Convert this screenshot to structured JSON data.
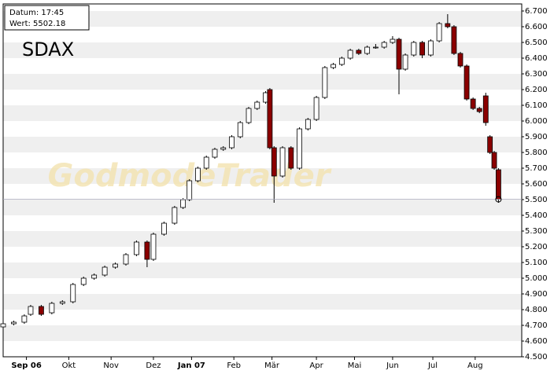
{
  "chart_data": {
    "type": "candlestick",
    "title": "SDAX",
    "info": {
      "datum": "Datum: 17:45",
      "wert": "Wert: 5502.18"
    },
    "watermark": "GodmodeTrader",
    "up_color": "#ffffff",
    "down_color": "#8b0000",
    "grid": true,
    "xlim": [
      0,
      245
    ],
    "ylim": [
      4500,
      6745
    ],
    "xticks": [
      {
        "value": 11,
        "label": "Sep 06"
      },
      {
        "value": 31,
        "label": "Okt"
      },
      {
        "value": 51,
        "label": "Nov"
      },
      {
        "value": 71,
        "label": "Dez"
      },
      {
        "value": 89,
        "label": "Jan 07"
      },
      {
        "value": 109,
        "label": "Feb"
      },
      {
        "value": 127,
        "label": "Mär"
      },
      {
        "value": 148,
        "label": "Apr"
      },
      {
        "value": 166,
        "label": "Mai"
      },
      {
        "value": 184,
        "label": "Jun"
      },
      {
        "value": 203,
        "label": "Jul"
      },
      {
        "value": 223,
        "label": "Aug"
      }
    ],
    "yticks": [
      {
        "value": 4500,
        "label": "4.500"
      },
      {
        "value": 4600,
        "label": "4.600"
      },
      {
        "value": 4700,
        "label": "4.700"
      },
      {
        "value": 4800,
        "label": "4.800"
      },
      {
        "value": 4900,
        "label": "4.900"
      },
      {
        "value": 5000,
        "label": "5.000"
      },
      {
        "value": 5100,
        "label": "5.100"
      },
      {
        "value": 5200,
        "label": "5.200"
      },
      {
        "value": 5300,
        "label": "5.300"
      },
      {
        "value": 5400,
        "label": "5.400"
      },
      {
        "value": 5500,
        "label": "5.500"
      },
      {
        "value": 5600,
        "label": "5.600"
      },
      {
        "value": 5700,
        "label": "5.700"
      },
      {
        "value": 5800,
        "label": "5.800"
      },
      {
        "value": 5900,
        "label": "5.900"
      },
      {
        "value": 6000,
        "label": "6.000"
      },
      {
        "value": 6100,
        "label": "6.100"
      },
      {
        "value": 6200,
        "label": "6.200"
      },
      {
        "value": 6300,
        "label": "6.300"
      },
      {
        "value": 6400,
        "label": "6.400"
      },
      {
        "value": 6500,
        "label": "6.500"
      },
      {
        "value": 6600,
        "label": "6.600"
      },
      {
        "value": 6700,
        "label": "6.700"
      }
    ],
    "x": [
      0,
      5,
      10,
      13,
      18,
      23,
      28,
      33,
      38,
      43,
      48,
      53,
      58,
      63,
      68,
      71,
      76,
      81,
      85,
      88,
      92,
      96,
      100,
      104,
      108,
      112,
      116,
      120,
      124,
      126,
      128,
      132,
      136,
      140,
      144,
      148,
      152,
      156,
      160,
      164,
      168,
      172,
      176,
      180,
      184,
      187,
      190,
      194,
      198,
      202,
      206,
      210,
      213,
      216,
      219,
      222,
      225,
      228,
      230,
      232,
      234
    ],
    "open": [
      4690,
      4710,
      4720,
      4770,
      4820,
      4780,
      4840,
      4850,
      4960,
      5000,
      5020,
      5070,
      5090,
      5150,
      5230,
      5120,
      5280,
      5350,
      5450,
      5500,
      5620,
      5700,
      5770,
      5820,
      5830,
      5900,
      5990,
      6080,
      6120,
      6200,
      5830,
      5650,
      5830,
      5700,
      5950,
      6010,
      6150,
      6340,
      6360,
      6400,
      6450,
      6430,
      6470,
      6470,
      6500,
      6520,
      6330,
      6420,
      6500,
      6420,
      6510,
      6620,
      6600,
      6430,
      6350,
      6140,
      6080,
      6160,
      5900,
      5800,
      5690
    ],
    "high": [
      4720,
      4730,
      4770,
      4830,
      4830,
      4850,
      4860,
      4970,
      5010,
      5030,
      5080,
      5100,
      5160,
      5240,
      5240,
      5290,
      5360,
      5460,
      5510,
      5630,
      5710,
      5780,
      5830,
      5840,
      5910,
      6000,
      6090,
      6130,
      6190,
      6210,
      5840,
      5840,
      5840,
      5960,
      6020,
      6160,
      6350,
      6370,
      6410,
      6460,
      6460,
      6480,
      6490,
      6510,
      6540,
      6530,
      6430,
      6510,
      6510,
      6520,
      6630,
      6680,
      6610,
      6440,
      6360,
      6150,
      6090,
      6180,
      5910,
      5810,
      5700
    ],
    "low": [
      4680,
      4700,
      4710,
      4760,
      4760,
      4770,
      4830,
      4840,
      4950,
      4990,
      5010,
      5060,
      5080,
      5140,
      5070,
      5110,
      5270,
      5340,
      5440,
      5490,
      5610,
      5690,
      5760,
      5810,
      5820,
      5890,
      5980,
      6070,
      6110,
      5820,
      5480,
      5640,
      5690,
      5690,
      5940,
      6000,
      6140,
      6330,
      6350,
      6390,
      6420,
      6420,
      6460,
      6460,
      6490,
      6170,
      6320,
      6410,
      6400,
      6410,
      6500,
      6590,
      6420,
      6340,
      6130,
      6070,
      6050,
      5970,
      5790,
      5690,
      5480
    ],
    "close": [
      4710,
      4720,
      4760,
      4820,
      4770,
      4840,
      4850,
      4960,
      5000,
      5020,
      5070,
      5090,
      5150,
      5230,
      5120,
      5280,
      5350,
      5450,
      5500,
      5620,
      5700,
      5770,
      5820,
      5830,
      5900,
      5990,
      6080,
      6120,
      6180,
      5830,
      5650,
      5830,
      5700,
      5950,
      6010,
      6150,
      6340,
      6360,
      6400,
      6450,
      6430,
      6470,
      6470,
      6500,
      6520,
      6330,
      6420,
      6500,
      6420,
      6510,
      6620,
      6600,
      6430,
      6350,
      6140,
      6080,
      6060,
      5990,
      5800,
      5700,
      5502
    ]
  }
}
